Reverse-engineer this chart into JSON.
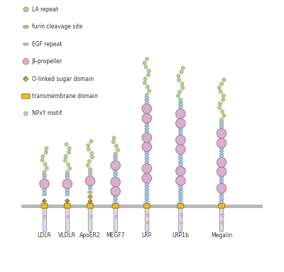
{
  "receptors": [
    "LDLR",
    "VLDLR",
    "ApoER2",
    "MEGF7",
    "LRP",
    "LRP1b",
    "Megalin"
  ],
  "colors": {
    "la_repeat": "#b8d090",
    "la_repeat_edge": "#7a9a50",
    "egf_repeat": "#c0d0e8",
    "egf_repeat_edge": "#6888b8",
    "beta_propeller": "#d8b0cc",
    "beta_propeller_edge": "#a07898",
    "o_linked": "#c8a870",
    "o_linked_edge": "#8a6830",
    "transmembrane": "#e8c030",
    "transmembrane_edge": "#a08010",
    "npxy_fill": "#e0c8c0",
    "npxy_edge": "#b09080",
    "furin_fill": "#d8b890",
    "furin_edge": "#a07840",
    "tail_fill": "#dcdce8",
    "tail_edge": "#a0a0b8",
    "membrane_color": "#b8b8b8",
    "background": "#ffffff"
  },
  "legend_items": [
    {
      "label": "LA repeat",
      "type": "circle",
      "color": "#b8d090",
      "edge": "#7a9a50"
    },
    {
      "label": "furin cleavage site",
      "type": "ellipse_h",
      "color": "#d8b890",
      "edge": "#a07840"
    },
    {
      "label": "EGF repeat",
      "type": "ellipse_h_blue",
      "color": "#c0d0e8",
      "edge": "#6888b8"
    },
    {
      "label": "β–propeller",
      "type": "circle_large",
      "color": "#d8b0cc",
      "edge": "#a07898"
    },
    {
      "label": "O-linked sugar domain",
      "type": "diamond",
      "color": "#c8a870",
      "edge": "#8a6830"
    },
    {
      "label": "transmembrane domain",
      "type": "rounded_rect",
      "color": "#e8c030",
      "edge": "#a08010"
    },
    {
      "label": "NPxY motif",
      "type": "circle_open",
      "color": "#e0c8c0",
      "edge": "#b09080"
    }
  ]
}
